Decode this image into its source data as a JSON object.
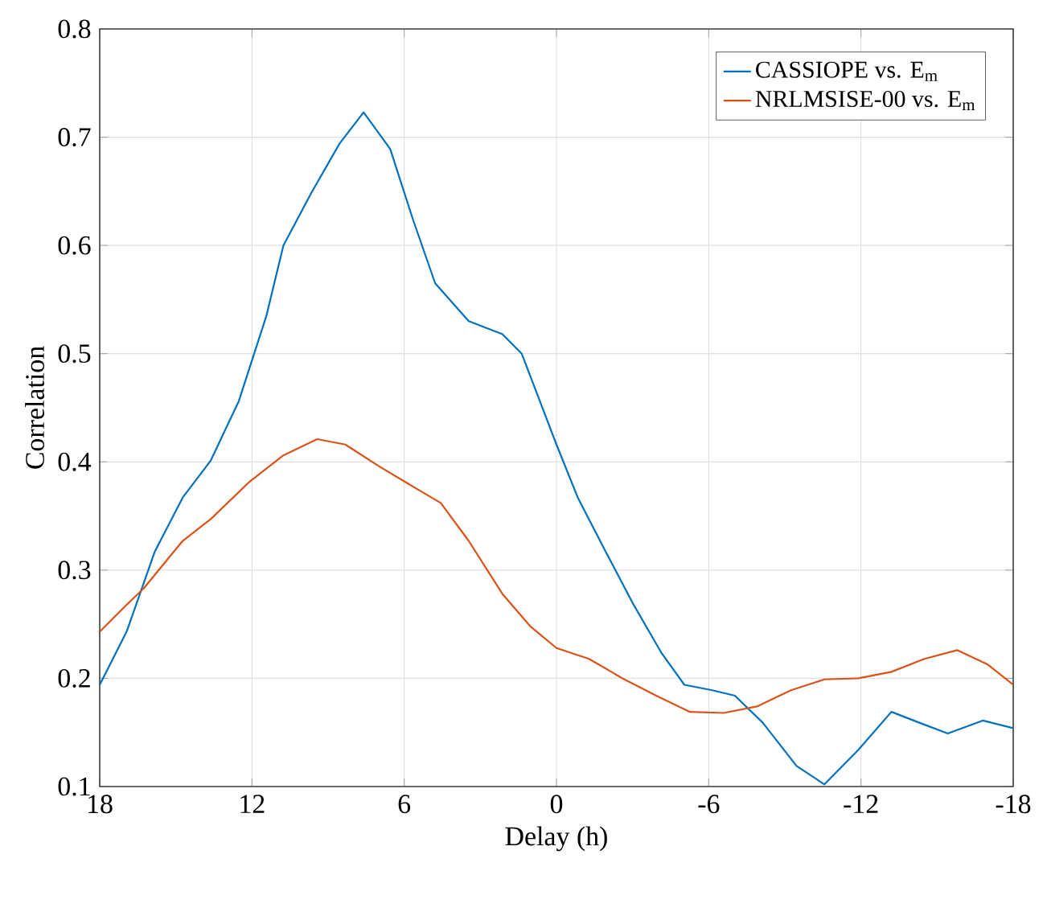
{
  "chart_data": {
    "type": "line",
    "xlabel": "Delay (h)",
    "ylabel": "Correlation",
    "xlim": [
      18,
      -18
    ],
    "xticks": [
      18,
      12,
      6,
      0,
      -6,
      -12,
      -18
    ],
    "ylim": [
      0.1,
      0.8
    ],
    "yticks": [
      0.1,
      0.2,
      0.3,
      0.4,
      0.5,
      0.6,
      0.7,
      0.8
    ],
    "grid": true,
    "legend": "top right",
    "series": [
      {
        "name": "CASSIOPE vs. E$_{m}$",
        "color": "#0072bd",
        "x": [
          18,
          16.94,
          15.83,
          14.73,
          13.63,
          12.52,
          11.43,
          10.76,
          9.65,
          8.55,
          7.6,
          6.55,
          5.67,
          4.78,
          3.46,
          2.13,
          1.37,
          0,
          -0.84,
          -1.94,
          -3.04,
          -4.15,
          -5.04,
          -6.14,
          -7.03,
          -8.13,
          -9.46,
          -10.56,
          -11.9,
          -13.2,
          -14.3,
          -15.42,
          -16.8,
          -18
        ],
        "values": [
          0.194,
          0.243,
          0.317,
          0.367,
          0.401,
          0.456,
          0.535,
          0.6,
          0.649,
          0.694,
          0.723,
          0.689,
          0.625,
          0.565,
          0.53,
          0.518,
          0.5,
          0.416,
          0.367,
          0.317,
          0.268,
          0.223,
          0.194,
          0.189,
          0.184,
          0.159,
          0.119,
          0.102,
          0.134,
          0.169,
          0.159,
          0.149,
          0.161,
          0.154
        ]
      },
      {
        "name": "NRLMSISE-00 vs. E$_{m}$",
        "color": "#d95319",
        "x": [
          18,
          16.94,
          16.27,
          14.73,
          13.63,
          12.08,
          10.76,
          9.43,
          8.32,
          7,
          6,
          4.56,
          3.46,
          2.13,
          1.03,
          0,
          -1.28,
          -2.6,
          -3.93,
          -5.26,
          -6.59,
          -7.9,
          -9.24,
          -10.56,
          -11.9,
          -13.2,
          -14.5,
          -15.8,
          -16.98,
          -18
        ],
        "values": [
          0.243,
          0.268,
          0.283,
          0.327,
          0.347,
          0.382,
          0.406,
          0.421,
          0.416,
          0.396,
          0.382,
          0.362,
          0.327,
          0.278,
          0.248,
          0.228,
          0.218,
          0.2,
          0.184,
          0.169,
          0.168,
          0.174,
          0.189,
          0.199,
          0.2,
          0.206,
          0.218,
          0.226,
          0.213,
          0.194
        ]
      }
    ]
  }
}
